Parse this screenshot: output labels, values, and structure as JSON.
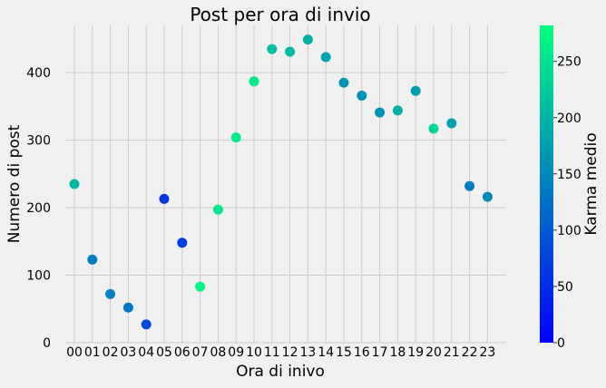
{
  "chart_data": {
    "type": "scatter",
    "title": "Post per ora di invio",
    "xlabel": "Ora di inivo",
    "ylabel": "Numero di post",
    "categories": [
      "00",
      "01",
      "02",
      "03",
      "04",
      "05",
      "06",
      "07",
      "08",
      "09",
      "10",
      "11",
      "12",
      "13",
      "14",
      "15",
      "16",
      "17",
      "18",
      "19",
      "20",
      "21",
      "22",
      "23"
    ],
    "series": [
      {
        "values": [
          235,
          123,
          72,
          52,
          27,
          213,
          148,
          83,
          197,
          304,
          387,
          435,
          431,
          449,
          423,
          385,
          366,
          341,
          344,
          373,
          317,
          325,
          232,
          216
        ],
        "color_values": [
          205,
          140,
          145,
          130,
          80,
          60,
          70,
          272,
          255,
          262,
          258,
          210,
          205,
          195,
          180,
          165,
          160,
          160,
          195,
          175,
          235,
          175,
          135,
          150
        ]
      }
    ],
    "ylim": [
      0,
      470
    ],
    "yticks": [
      0,
      100,
      200,
      300,
      400
    ],
    "grid": true,
    "colorbar": {
      "label": "Karma medio",
      "range": [
        0,
        282
      ],
      "ticks": [
        0,
        50,
        100,
        150,
        200,
        250
      ],
      "colormap": "winter",
      "colors": [
        "#0000ff",
        "#00ff80"
      ]
    },
    "marker_color": "winter colormap"
  }
}
